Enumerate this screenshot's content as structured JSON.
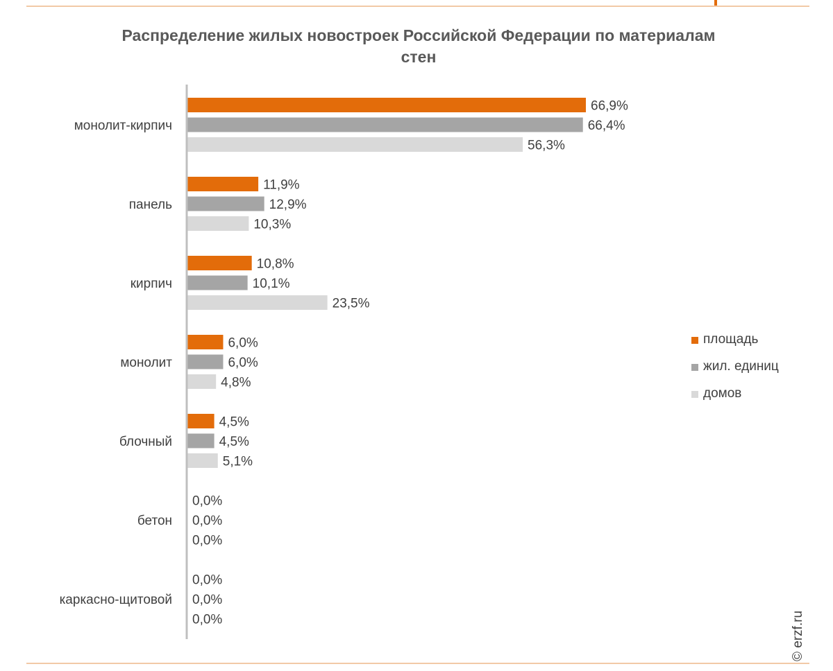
{
  "title": "Распределение жилых новостроек Российской Федерации по материалам стен",
  "watermark": "© erzf.ru",
  "colors": {
    "ploschad": "#e36c0a",
    "zhil": "#a5a5a5",
    "domov": "#d9d9d9",
    "axis": "#bfbfbf",
    "text": "#404040",
    "rule": "#f2c9a6"
  },
  "legend": [
    {
      "label": "площадь",
      "color": "#e36c0a"
    },
    {
      "label": "жил. единиц",
      "color": "#a5a5a5"
    },
    {
      "label": "домов",
      "color": "#d9d9d9"
    }
  ],
  "chart_data": {
    "type": "bar",
    "orientation": "horizontal",
    "title": "Распределение жилых новостроек Российской Федерации по материалам стен",
    "categories": [
      "монолит-кирпич",
      "панель",
      "кирпич",
      "монолит",
      "блочный",
      "бетон",
      "каркасно-щитовой"
    ],
    "series": [
      {
        "name": "площадь",
        "values": [
          66.9,
          11.9,
          10.8,
          6.0,
          4.5,
          0.0,
          0.0
        ],
        "labels": [
          "66,9%",
          "11,9%",
          "10,8%",
          "6,0%",
          "4,5%",
          "0,0%",
          "0,0%"
        ],
        "color": "#e36c0a"
      },
      {
        "name": "жил. единиц",
        "values": [
          66.4,
          12.9,
          10.1,
          6.0,
          4.5,
          0.0,
          0.0
        ],
        "labels": [
          "66,4%",
          "12,9%",
          "10,1%",
          "6,0%",
          "4,5%",
          "0,0%",
          "0,0%"
        ],
        "color": "#a5a5a5"
      },
      {
        "name": "домов",
        "values": [
          56.3,
          10.3,
          23.5,
          4.8,
          5.1,
          0.0,
          0.0
        ],
        "labels": [
          "56,3%",
          "10,3%",
          "23,5%",
          "4,8%",
          "5,1%",
          "0,0%",
          "0,0%"
        ],
        "color": "#d9d9d9"
      }
    ],
    "xlim": [
      0,
      100
    ],
    "value_unit": "%",
    "grid": false,
    "legend_position": "right"
  }
}
